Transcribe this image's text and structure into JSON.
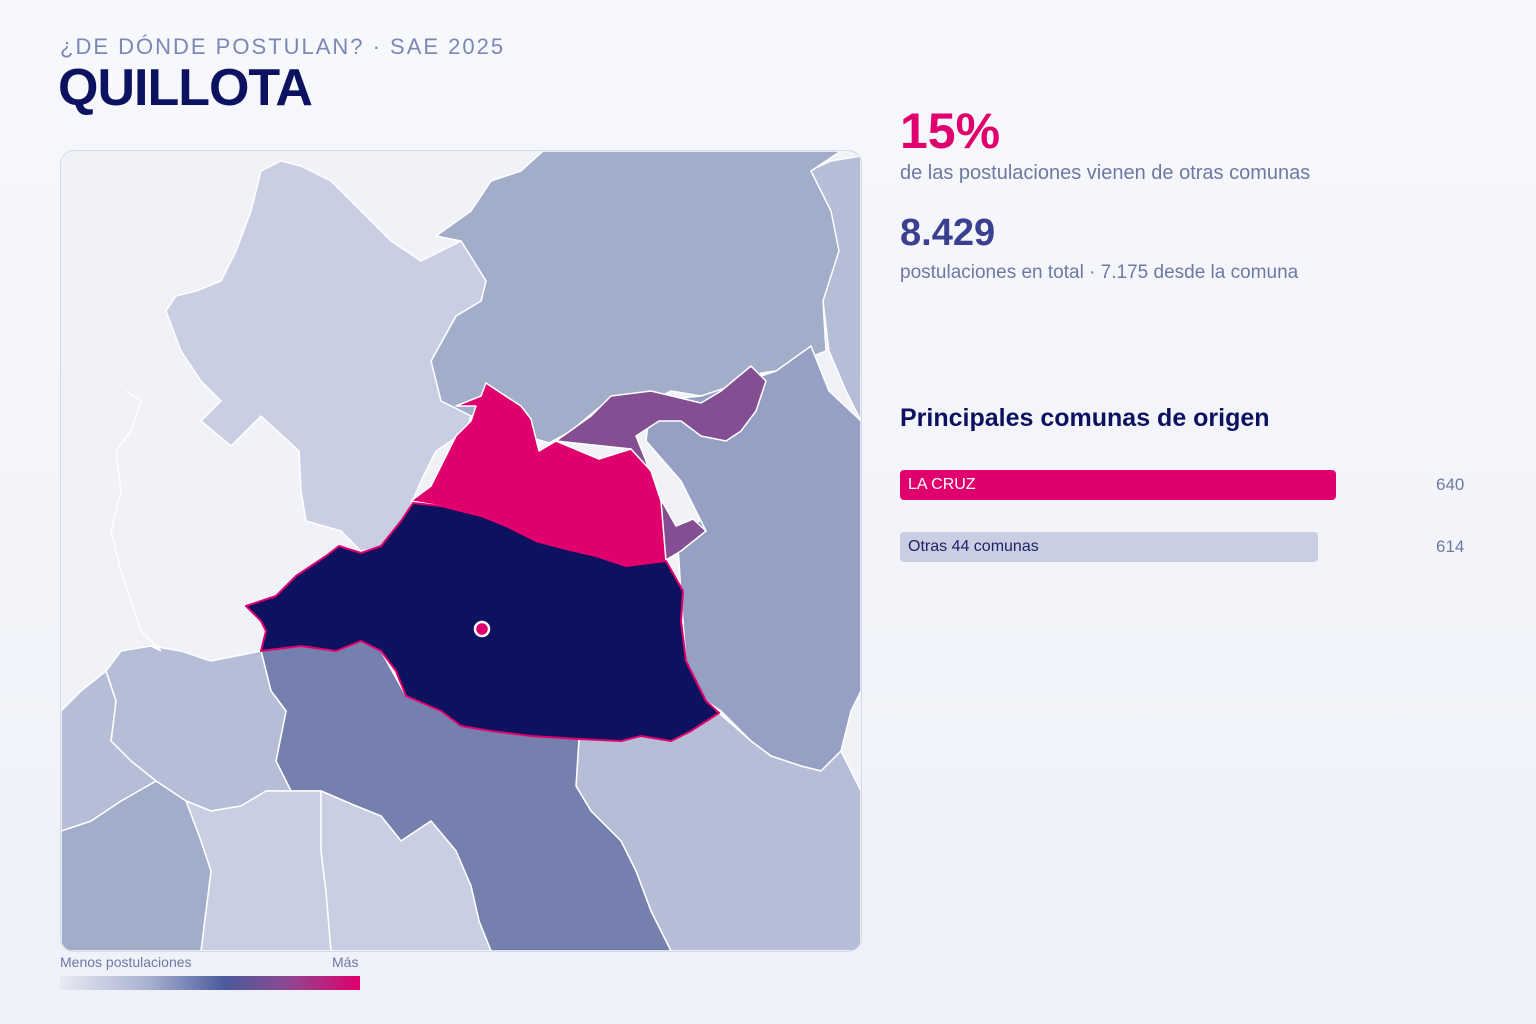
{
  "header": {
    "kicker": "¿DE DÓNDE POSTULAN? · SAE 2025",
    "title": "QUILLOTA"
  },
  "stats": {
    "pct_value": "15%",
    "pct_label": "de las postulaciones vienen de otras comunas",
    "total_value": "8.429",
    "total_label": "postulaciones en total · 7.175 desde la comuna"
  },
  "ranking": {
    "title": "Principales comunas de origen",
    "rows": [
      {
        "label": "LA CRUZ",
        "value": "640",
        "amount": 640,
        "color": "#e0006d",
        "text_color": "#ffffff"
      },
      {
        "label": "Otras 44 comunas",
        "value": "614",
        "amount": 614,
        "color": "#c9cee3",
        "text_color": "#1d2466"
      }
    ]
  },
  "legend": {
    "min_label": "Menos postulaciones",
    "max_label": "Más"
  },
  "colors": {
    "accent": "#e0006d",
    "home": "#0d1260",
    "high": "#e0006d",
    "mid_high": "#834e92",
    "mid": "#7580ae",
    "low_mid": "#96a0c5",
    "low": "#a2adca",
    "lower": "#b5bdd7",
    "lowest": "#c9cee3",
    "none": "#f0f2f8"
  }
}
